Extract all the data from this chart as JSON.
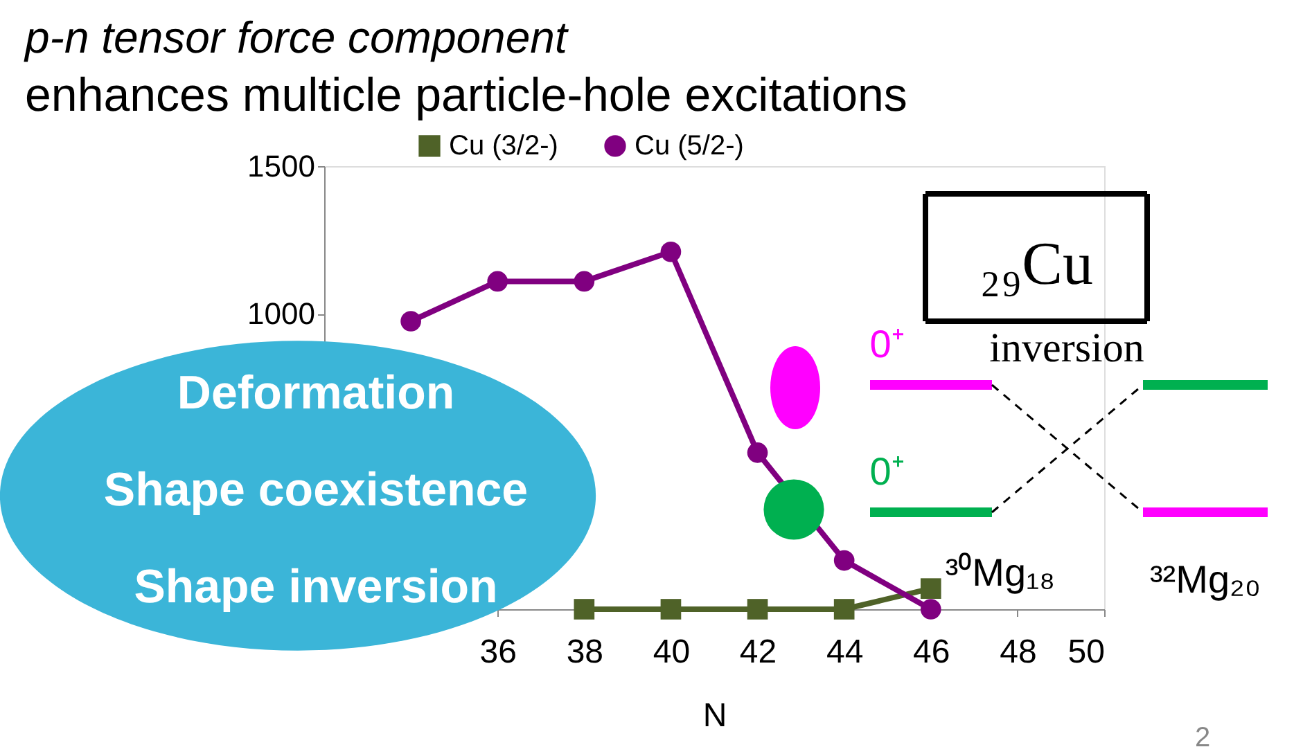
{
  "chart_data": {
    "type": "line",
    "title": "p-n tensor force component",
    "subtitle": "enhances multicle particle-hole excitations",
    "xlabel": "N",
    "xlim": [
      32,
      50
    ],
    "xticks": [
      36,
      38,
      40,
      42,
      44,
      46,
      48,
      50
    ],
    "ylim": [
      0,
      1500
    ],
    "yticks": [
      1000,
      1500
    ],
    "grid": false,
    "legend": "top",
    "series": [
      {
        "name": "Cu (3/2-)",
        "color": "#4f6228",
        "marker": "square",
        "x": [
          38,
          40,
          42,
          44,
          46
        ],
        "values": [
          0,
          0,
          0,
          0,
          70
        ]
      },
      {
        "name": "Cu (5/2-)",
        "color": "#800080",
        "marker": "circle",
        "x": [
          34,
          36,
          38,
          40,
          42,
          44,
          46
        ],
        "values": [
          975,
          1110,
          1110,
          1210,
          530,
          165,
          0
        ]
      }
    ],
    "annotations": [
      "Deformation",
      "Shape coexistence",
      "Shape inversion",
      "0⁺",
      "0⁺",
      "₂₉Cu",
      "inversion",
      "³⁰Mg₁₈",
      "³²Mg₂₀",
      "2"
    ]
  }
}
